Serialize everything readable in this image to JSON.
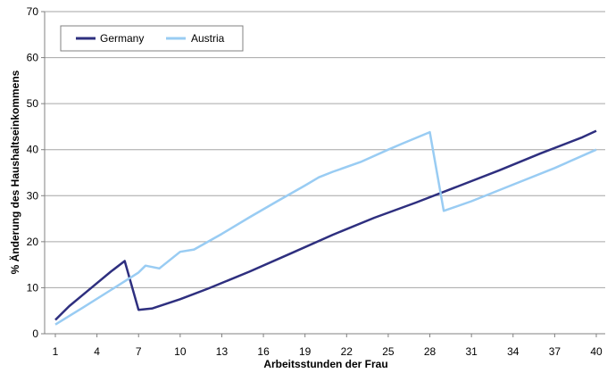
{
  "chart_data": {
    "type": "line",
    "title": "",
    "xlabel": "Arbeitsstunden der Frau",
    "ylabel": "% Änderung des Haushaltseinkommens",
    "xlim": [
      1,
      40
    ],
    "ylim": [
      0,
      70
    ],
    "x_ticks": [
      "1",
      "4",
      "7",
      "10",
      "13",
      "16",
      "19",
      "22",
      "25",
      "28",
      "31",
      "34",
      "37",
      "40"
    ],
    "y_ticks": [
      "0",
      "10",
      "20",
      "30",
      "40",
      "50",
      "60",
      "70"
    ],
    "grid": "horizontal",
    "legend_position": "top-left",
    "series": [
      {
        "name": "Germany",
        "color": "#2e2f7f",
        "points": [
          [
            1,
            3
          ],
          [
            2,
            6
          ],
          [
            3,
            8.5
          ],
          [
            4,
            11
          ],
          [
            5,
            13.5
          ],
          [
            6,
            15.8
          ],
          [
            7,
            5.2
          ],
          [
            8,
            5.5
          ],
          [
            10,
            7.5
          ],
          [
            12,
            9.8
          ],
          [
            15,
            13.5
          ],
          [
            18,
            17.5
          ],
          [
            21,
            21.5
          ],
          [
            24,
            25.2
          ],
          [
            27,
            28.5
          ],
          [
            30,
            32
          ],
          [
            33,
            35.5
          ],
          [
            36,
            39.2
          ],
          [
            39,
            42.7
          ],
          [
            40,
            44.1
          ]
        ]
      },
      {
        "name": "Austria",
        "color": "#99ccf3",
        "points": [
          [
            1,
            2
          ],
          [
            3,
            5.7
          ],
          [
            5,
            9.5
          ],
          [
            7,
            13.3
          ],
          [
            7.5,
            14.8
          ],
          [
            8.5,
            14.2
          ],
          [
            10,
            17.8
          ],
          [
            11,
            18.3
          ],
          [
            13,
            21.7
          ],
          [
            15,
            25.3
          ],
          [
            17,
            28.8
          ],
          [
            19,
            32.2
          ],
          [
            20,
            34
          ],
          [
            21,
            35.2
          ],
          [
            23,
            37.3
          ],
          [
            25,
            40
          ],
          [
            26,
            41.3
          ],
          [
            28,
            43.8
          ],
          [
            29,
            26.7
          ],
          [
            31,
            28.8
          ],
          [
            34,
            32.4
          ],
          [
            37,
            36
          ],
          [
            40,
            40
          ]
        ]
      }
    ]
  }
}
